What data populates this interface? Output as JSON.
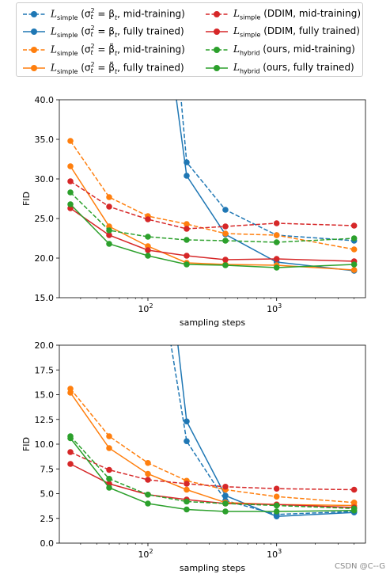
{
  "legend": {
    "entries": [
      {
        "id": "s_mid",
        "symbol": "L",
        "subscript": "simple",
        "param": "(σ",
        "sup": "2",
        "tsub": "t",
        "eq": " = β",
        "bsub": "t",
        "tail": ", mid-training)",
        "color": "#1f77b4",
        "dash": true
      },
      {
        "id": "s_full",
        "symbol": "L",
        "subscript": "simple",
        "param": "(σ",
        "sup": "2",
        "tsub": "t",
        "eq": " = β",
        "bsub": "t",
        "tail": ", fully trained)",
        "color": "#1f77b4",
        "dash": false
      },
      {
        "id": "t_mid",
        "symbol": "L",
        "subscript": "simple",
        "param": "(σ",
        "sup": "2",
        "tsub": "t",
        "eq": " = β̃",
        "bsub": "t",
        "tail": ", mid-training)",
        "color": "#ff7f0e",
        "dash": true
      },
      {
        "id": "t_full",
        "symbol": "L",
        "subscript": "simple",
        "param": "(σ",
        "sup": "2",
        "tsub": "t",
        "eq": " = β̃",
        "bsub": "t",
        "tail": ", fully trained)",
        "color": "#ff7f0e",
        "dash": false
      },
      {
        "id": "d_mid",
        "symbol": "L",
        "subscript": "simple",
        "text": " (DDIM, mid-training)",
        "color": "#d62728",
        "dash": true
      },
      {
        "id": "d_full",
        "symbol": "L",
        "subscript": "simple",
        "text": " (DDIM, fully trained)",
        "color": "#d62728",
        "dash": false
      },
      {
        "id": "h_mid",
        "symbol": "L",
        "subscript": "hybrid",
        "text": " (ours, mid-training)",
        "color": "#2ca02c",
        "dash": true
      },
      {
        "id": "h_full",
        "symbol": "L",
        "subscript": "hybrid",
        "text": " (ours, fully trained)",
        "color": "#2ca02c",
        "dash": false
      }
    ]
  },
  "chart_data": [
    {
      "type": "line",
      "xscale": "log",
      "xlabel": "sampling steps",
      "ylabel": "FID",
      "ylim": [
        15.0,
        40.0
      ],
      "yticks": [
        "15.0",
        "17.5",
        "20.0",
        "22.5",
        "25.0",
        "27.5",
        "30.0",
        "32.5",
        "35.0",
        "37.5",
        "40.0"
      ],
      "yticks_shown": [
        "15.0",
        "20.0",
        "25.0",
        "30.0",
        "35.0",
        "40.0"
      ],
      "xticks": [
        {
          "base": "10",
          "exp": "2",
          "value": 100
        },
        {
          "base": "10",
          "exp": "3",
          "value": 1000
        }
      ],
      "x": [
        25,
        50,
        100,
        200,
        400,
        1000,
        4000
      ],
      "series": [
        {
          "legend": "s_mid",
          "color": "#1f77b4",
          "dash": true,
          "x": [
            200,
            400,
            1000,
            4000
          ],
          "values": [
            32.1,
            26.1,
            22.9,
            22.2
          ],
          "lead": [
            180,
            40.5
          ]
        },
        {
          "legend": "s_full",
          "color": "#1f77b4",
          "dash": false,
          "x": [
            200,
            400,
            1000,
            4000
          ],
          "values": [
            30.4,
            23.0,
            19.5,
            18.4
          ],
          "lead": [
            165,
            40.5
          ]
        },
        {
          "legend": "t_mid",
          "color": "#ff7f0e",
          "dash": true,
          "values": [
            34.8,
            27.7,
            25.3,
            24.3,
            23.1,
            22.9,
            21.1
          ]
        },
        {
          "legend": "t_full",
          "color": "#ff7f0e",
          "dash": false,
          "values": [
            31.6,
            24.0,
            21.5,
            19.4,
            19.2,
            19.1,
            18.5
          ]
        },
        {
          "legend": "d_mid",
          "color": "#d62728",
          "dash": true,
          "values": [
            29.7,
            26.5,
            24.9,
            23.7,
            24.0,
            24.4,
            24.1
          ]
        },
        {
          "legend": "d_full",
          "color": "#d62728",
          "dash": false,
          "values": [
            26.3,
            22.9,
            21.0,
            20.3,
            19.8,
            19.9,
            19.6
          ]
        },
        {
          "legend": "h_mid",
          "color": "#2ca02c",
          "dash": true,
          "values": [
            28.3,
            23.5,
            22.7,
            22.3,
            22.2,
            22.0,
            22.5
          ]
        },
        {
          "legend": "h_full",
          "color": "#2ca02c",
          "dash": false,
          "values": [
            26.8,
            21.8,
            20.3,
            19.2,
            19.1,
            18.8,
            19.2
          ]
        }
      ]
    },
    {
      "type": "line",
      "xscale": "log",
      "xlabel": "sampling steps",
      "ylabel": "FID",
      "ylim": [
        0.0,
        20.0
      ],
      "yticks": [
        "0.0",
        "2.5",
        "5.0",
        "7.5",
        "10.0",
        "12.5",
        "15.0",
        "17.5",
        "20.0"
      ],
      "yticks_shown": [
        "0.0",
        "2.5",
        "5.0",
        "7.5",
        "10.0",
        "12.5",
        "15.0",
        "17.5",
        "20.0"
      ],
      "xticks": [
        {
          "base": "10",
          "exp": "2",
          "value": 100
        },
        {
          "base": "10",
          "exp": "3",
          "value": 1000
        }
      ],
      "x": [
        25,
        50,
        100,
        200,
        400,
        1000,
        4000
      ],
      "series": [
        {
          "legend": "s_mid",
          "color": "#1f77b4",
          "dash": true,
          "x": [
            200,
            400,
            1000,
            4000
          ],
          "values": [
            10.3,
            4.3,
            2.9,
            3.2
          ],
          "lead": [
            150,
            20.3
          ]
        },
        {
          "legend": "s_full",
          "color": "#1f77b4",
          "dash": false,
          "x": [
            200,
            400,
            1000,
            4000
          ],
          "values": [
            12.3,
            4.8,
            2.7,
            3.1
          ],
          "lead": [
            170,
            20.3
          ]
        },
        {
          "legend": "t_mid",
          "color": "#ff7f0e",
          "dash": true,
          "values": [
            15.6,
            10.8,
            8.1,
            6.3,
            5.4,
            4.7,
            4.1
          ]
        },
        {
          "legend": "t_full",
          "color": "#ff7f0e",
          "dash": false,
          "values": [
            15.2,
            9.6,
            7.0,
            5.4,
            4.1,
            3.9,
            3.8
          ]
        },
        {
          "legend": "d_mid",
          "color": "#d62728",
          "dash": true,
          "values": [
            9.2,
            7.4,
            6.4,
            6.0,
            5.7,
            5.5,
            5.4
          ]
        },
        {
          "legend": "d_full",
          "color": "#d62728",
          "dash": false,
          "values": [
            8.0,
            6.0,
            4.9,
            4.4,
            4.0,
            3.9,
            3.6
          ]
        },
        {
          "legend": "h_mid",
          "color": "#2ca02c",
          "dash": true,
          "values": [
            10.8,
            6.5,
            4.9,
            4.2,
            4.0,
            3.8,
            3.5
          ]
        },
        {
          "legend": "h_full",
          "color": "#2ca02c",
          "dash": false,
          "values": [
            10.6,
            5.6,
            4.0,
            3.4,
            3.2,
            3.2,
            3.3
          ]
        }
      ]
    }
  ],
  "watermark": "CSDN @C--G"
}
